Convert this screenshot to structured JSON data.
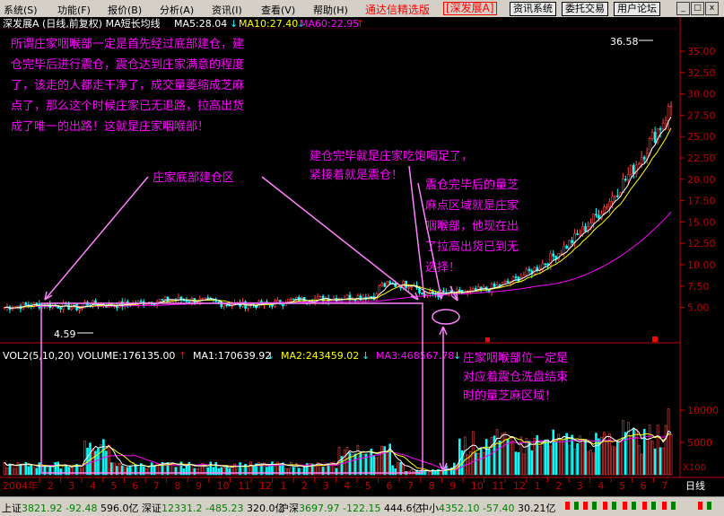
{
  "menu": [
    {
      "label": "系统(S)"
    },
    {
      "label": "功能(F)"
    },
    {
      "label": "报价(B)"
    },
    {
      "label": "分析(A)"
    },
    {
      "label": "资讯(I)"
    },
    {
      "label": "查看(V)"
    },
    {
      "label": "帮助(H)"
    }
  ],
  "brand": {
    "title": "通达信精选版",
    "stock": "[深发展A]"
  },
  "top_buttons": [
    {
      "label": "资讯系统"
    },
    {
      "label": "委托交易"
    },
    {
      "label": "用户论坛"
    }
  ],
  "window_buttons": [
    "_",
    "□",
    "x"
  ],
  "header": {
    "stock_title": "深发展A (日线,前复权) MA短长均线",
    "ma5": "MA5:28.04",
    "ma10": "MA10:27.40",
    "ma60": "MA60:22.95"
  },
  "volume_header": {
    "vol_label": "VOL2(5,10,20) VOLUME:176135.00",
    "ma1": "MA1:170639.92",
    "ma2": "MA2:243459.02",
    "ma3": "MA3:468567.78"
  },
  "price_axis": [
    "35.00",
    "32.50",
    "30.00",
    "27.50",
    "25.00",
    "22.50",
    "20.00",
    "17.50",
    "15.00",
    "12.50",
    "10.00",
    "7.50",
    "5.00"
  ],
  "volume_axis": [
    "10000",
    "5000"
  ],
  "volume_unit": "X100",
  "period_label": "日线",
  "high_label": "36.58",
  "low_label": "4.59",
  "year_label": "2004年",
  "x_axis": [
    "2",
    "3",
    "4",
    "5",
    "6",
    "7",
    "8",
    "9",
    "10",
    "11",
    "12",
    "1",
    "2",
    "3",
    "4",
    "5",
    "6",
    "7",
    "8",
    "9",
    "10",
    "11",
    "12",
    "1",
    "2",
    "3",
    "4",
    "5",
    "6",
    "7"
  ],
  "annotations": {
    "intro_lines": [
      "所谓庄家咽喉部一定是首先经过底部建仓，建",
      "仓完毕后进行震仓，震仓达到庄家满意的程度",
      "了，该走的人都走干净了，成交量萎缩成芝麻",
      "点了，那么这个时候庄家已无退路，拉高出货",
      "成了唯一的出路！这就是庄家咽喉部！"
    ],
    "bottom_zone": "庄家底部建仓区",
    "shakeout_lines": [
      "建仓完毕就是庄家吃饱喝足了，",
      "紧接着就是震仓！"
    ],
    "sesame_lines": [
      "震仓完毕后的量芝",
      "麻点区域就是庄家",
      "咽喉部，他现在出",
      "了拉高出货已到无",
      "选择！"
    ],
    "throat_lines": [
      "庄家咽喉部位一定是",
      "对应着震仓洗盘结束",
      "时的量芝麻区域！"
    ]
  },
  "status": [
    {
      "name": "上证",
      "value": "3821.92",
      "change": "-92.48",
      "amount": "596.0亿"
    },
    {
      "name": "深证",
      "value": "12331.2",
      "change": "-485.23",
      "amount": "320.0亿"
    },
    {
      "name": "沪深",
      "value": "3697.97",
      "change": "-122.15",
      "amount": "444.6亿"
    },
    {
      "name": "中小",
      "value": "4352.10",
      "change": "-57.40",
      "amount": "30.21亿"
    }
  ],
  "colors": {
    "annotation": "#ff00ff",
    "axis_red": "#c00000",
    "up_candle": "#ff4040",
    "down_candle": "#00ffff",
    "ma5": "#ffffff",
    "ma10": "#ffff00",
    "ma60": "#ff00ff"
  }
}
